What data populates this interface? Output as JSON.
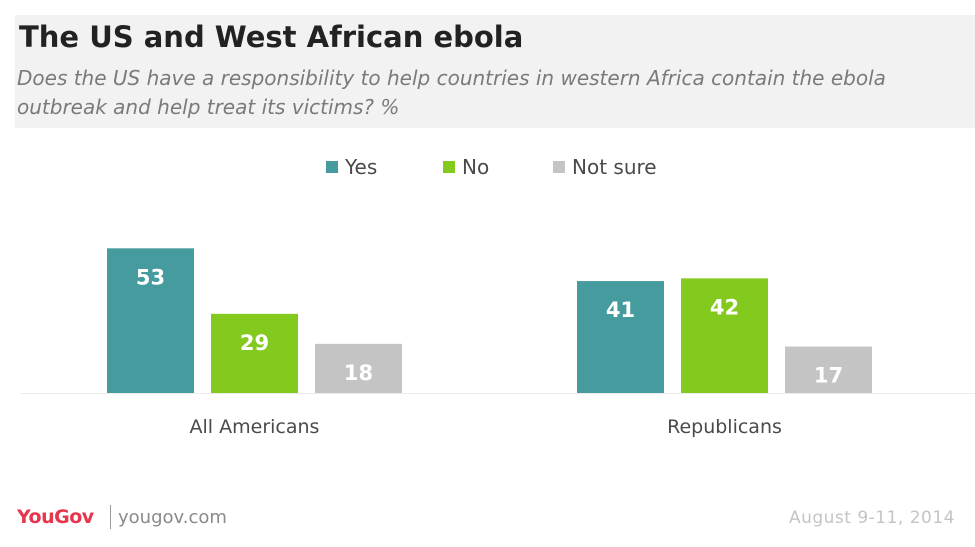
{
  "chart_data": {
    "type": "bar",
    "title": "The US and West African ebola",
    "subtitle": "Does the US have a responsibility to help countries in western Africa contain the ebola outbreak and help treat its victims? %",
    "categories": [
      "All Americans",
      "Republicans"
    ],
    "series": [
      {
        "name": "Yes",
        "values": [
          53,
          41
        ],
        "color": "#459b9e"
      },
      {
        "name": "No",
        "values": [
          29,
          42
        ],
        "color": "#84c91d"
      },
      {
        "name": "Not sure",
        "values": [
          18,
          17
        ],
        "color": "#c4c4c4"
      }
    ],
    "ylim": [
      0,
      60
    ],
    "grid": false,
    "legend_position": "top-center",
    "data_labels": true
  },
  "footer": {
    "logo": "YouGov",
    "site": "yougov.com",
    "date": "August 9-11, 2014"
  },
  "colors": {
    "header_background": "#f2f2f2",
    "logo": "#e6354c"
  }
}
